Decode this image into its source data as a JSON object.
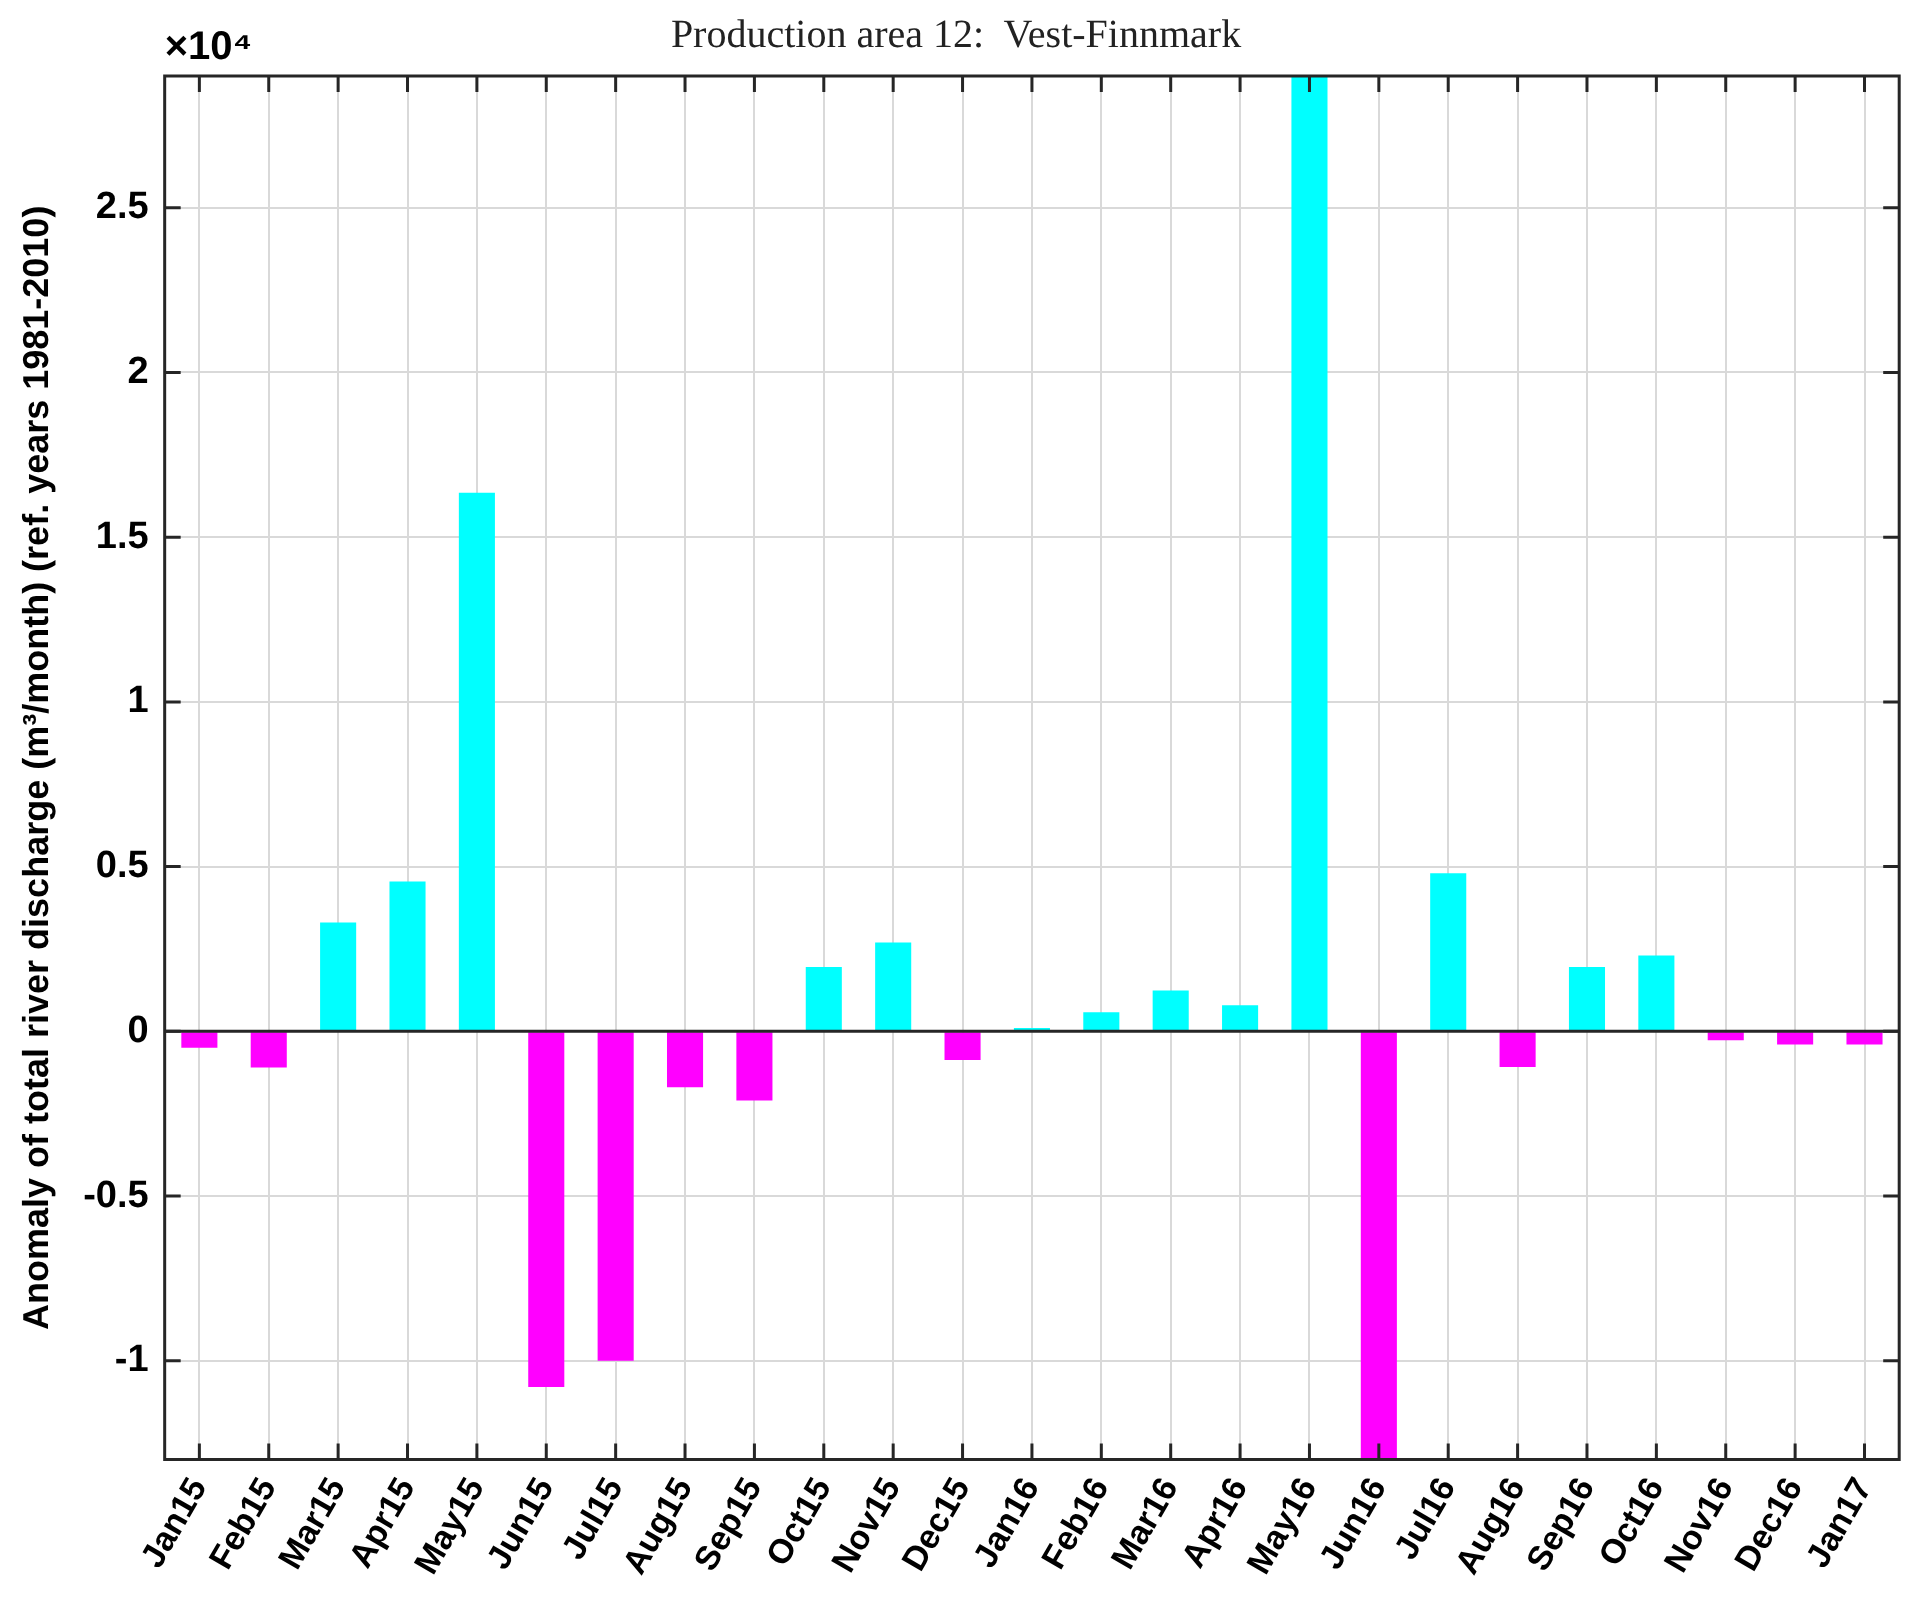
{
  "chart_data": {
    "type": "bar",
    "title": "Production area 12:  Vest-Finnmark",
    "ylabel": "Anomaly of total river discharge (m³/month) (ref. years 1981-2010)",
    "annotations": [
      "×10⁴"
    ],
    "categories": [
      "Jan15",
      "Feb15",
      "Mar15",
      "Apr15",
      "May15",
      "Jun15",
      "Jul15",
      "Aug15",
      "Sep15",
      "Oct15",
      "Nov15",
      "Dec15",
      "Jan16",
      "Feb16",
      "Mar16",
      "Apr16",
      "May16",
      "Jun16",
      "Jul16",
      "Aug16",
      "Sep16",
      "Oct16",
      "Nov16",
      "Dec16",
      "Jan17"
    ],
    "values": [
      -0.05,
      -0.11,
      0.33,
      0.455,
      1.635,
      -1.08,
      -1.0,
      -0.17,
      -0.21,
      0.195,
      0.27,
      -0.087,
      0.01,
      0.058,
      0.124,
      0.079,
      2.9,
      -1.3,
      0.48,
      -0.108,
      0.195,
      0.23,
      -0.027,
      -0.04,
      -0.04
    ],
    "colors": [
      "#ff00ff",
      "#ff00ff",
      "#00ffff",
      "#00ffff",
      "#00ffff",
      "#ff00ff",
      "#ff00ff",
      "#ff00ff",
      "#ff00ff",
      "#00ffff",
      "#00ffff",
      "#ff00ff",
      "#00ffff",
      "#00ffff",
      "#00ffff",
      "#00ffff",
      "#00ffff",
      "#ff00ff",
      "#00ffff",
      "#ff00ff",
      "#00ffff",
      "#00ffff",
      "#ff00ff",
      "#ff00ff",
      "#ff00ff"
    ],
    "ylim": [
      -1.3,
      2.9
    ],
    "yticks": [
      -1,
      -0.5,
      0,
      0.5,
      1,
      1.5,
      2,
      2.5
    ],
    "grid": true,
    "legend": false
  }
}
